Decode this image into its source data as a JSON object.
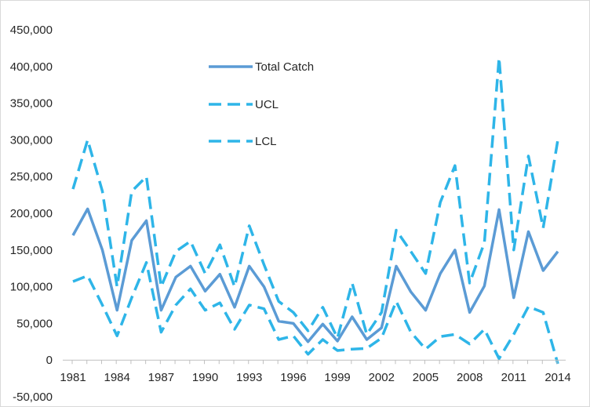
{
  "chart_data": {
    "type": "line",
    "title": "",
    "xlabel": "",
    "ylabel": "",
    "x": [
      1981,
      1982,
      1983,
      1984,
      1985,
      1986,
      1987,
      1988,
      1989,
      1990,
      1991,
      1992,
      1993,
      1994,
      1995,
      1996,
      1997,
      1998,
      1999,
      2000,
      2001,
      2002,
      2003,
      2004,
      2005,
      2006,
      2007,
      2008,
      2009,
      2010,
      2011,
      2012,
      2013,
      2014
    ],
    "x_tick_labels": [
      "1981",
      "1984",
      "1987",
      "1990",
      "1993",
      "1996",
      "1999",
      "2002",
      "2005",
      "2008",
      "2011",
      "2014"
    ],
    "y_tick_labels": [
      "450,000",
      "400,000",
      "350,000",
      "300,000",
      "250,000",
      "200,000",
      "150,000",
      "100,000",
      "50,000",
      "0",
      "-50,000"
    ],
    "ylim": [
      -50000,
      450000
    ],
    "grid": false,
    "legend_position": "top-center",
    "series": [
      {
        "name": "Total Catch",
        "style": "solid",
        "color": "#5B9BD5",
        "values": [
          170000,
          206000,
          150000,
          68000,
          163000,
          190000,
          68000,
          113000,
          128000,
          94000,
          117000,
          72000,
          128000,
          100000,
          53000,
          50000,
          25000,
          49000,
          26000,
          59000,
          28000,
          44000,
          128000,
          93000,
          68000,
          118000,
          150000,
          65000,
          101000,
          205000,
          85000,
          175000,
          122000,
          148000
        ]
      },
      {
        "name": "UCL",
        "style": "dashed",
        "color": "#2EB5E8",
        "values": [
          233000,
          300000,
          230000,
          100000,
          230000,
          250000,
          100000,
          148000,
          162000,
          118000,
          157000,
          100000,
          183000,
          130000,
          80000,
          65000,
          40000,
          72000,
          30000,
          105000,
          35000,
          65000,
          177000,
          148000,
          118000,
          215000,
          265000,
          105000,
          160000,
          412000,
          150000,
          278000,
          180000,
          300000
        ]
      },
      {
        "name": "LCL",
        "style": "dashed",
        "color": "#2EB5E8",
        "values": [
          107000,
          115000,
          75000,
          33000,
          85000,
          133000,
          38000,
          75000,
          97000,
          68000,
          78000,
          42000,
          75000,
          70000,
          28000,
          33000,
          8000,
          28000,
          13000,
          15000,
          16000,
          30000,
          80000,
          38000,
          15000,
          32000,
          35000,
          22000,
          42000,
          2000,
          35000,
          73000,
          65000,
          -5000
        ]
      }
    ]
  }
}
